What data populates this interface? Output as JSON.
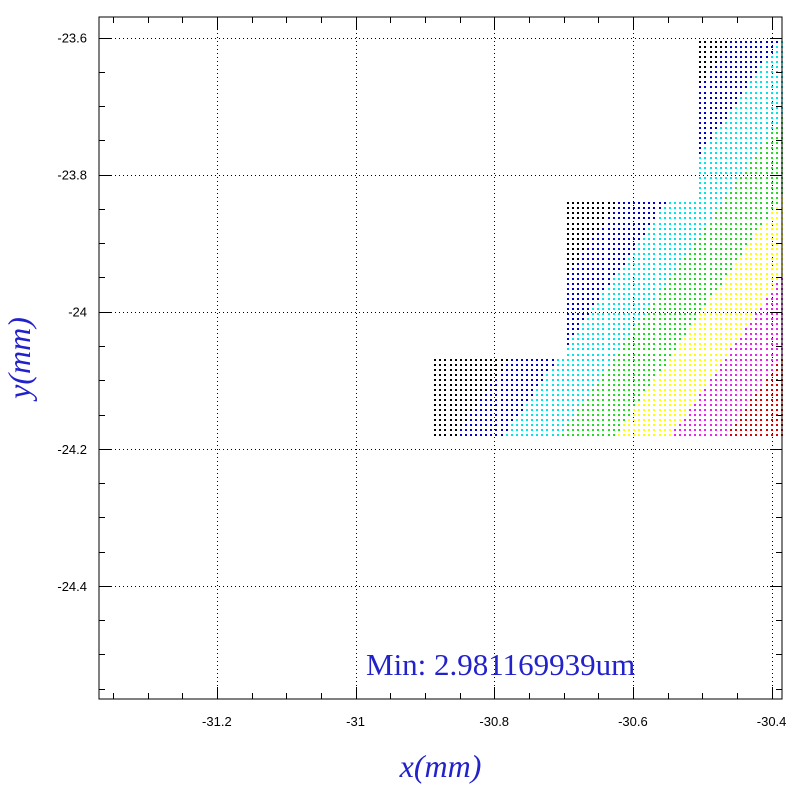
{
  "chart_data": {
    "type": "scatter",
    "title": "",
    "xlabel": "x(mm)",
    "ylabel": "y(mm)",
    "xlim": [
      -31.37,
      -30.385
    ],
    "ylim": [
      -24.565,
      -23.57
    ],
    "x_ticks": [
      -31.2,
      -31.0,
      -30.8,
      -30.6,
      -30.4
    ],
    "x_tick_labels": [
      "-31.2",
      "-31",
      "-30.8",
      "-30.6",
      "-30.4"
    ],
    "y_ticks": [
      -23.6,
      -23.8,
      -24.0,
      -24.2,
      -24.4
    ],
    "y_tick_labels": [
      "-23.6",
      "-23.8",
      "-24",
      "-24.2",
      "-24.4"
    ],
    "grid": true,
    "grid_style": "dotted",
    "annotation": "Min: 2.981169939um",
    "label_color": "#2222cc",
    "band_colors": [
      "#000000",
      "#0000cc",
      "#00e5e5",
      "#22dd22",
      "#ffff00",
      "#ee22ee",
      "#dd0000"
    ],
    "point_spacing_mm": 0.00735,
    "regions": [
      {
        "x_min": -30.885,
        "x_max": -30.385,
        "y_min": -24.18,
        "y_max": -24.065
      },
      {
        "x_min": -30.7,
        "x_max": -30.385,
        "y_min": -24.065,
        "y_max": -23.835
      },
      {
        "x_min": -30.505,
        "x_max": -30.385,
        "y_min": -23.835,
        "y_max": -23.6
      }
    ],
    "bands": {
      "diagonal_slope": 1.45,
      "offset_origin": [
        -30.885,
        -24.18
      ],
      "offset_min": 0.0,
      "offset_max": 0.7,
      "boundaries": [
        0.03,
        0.1,
        0.18,
        0.26,
        0.34,
        0.42
      ]
    }
  }
}
